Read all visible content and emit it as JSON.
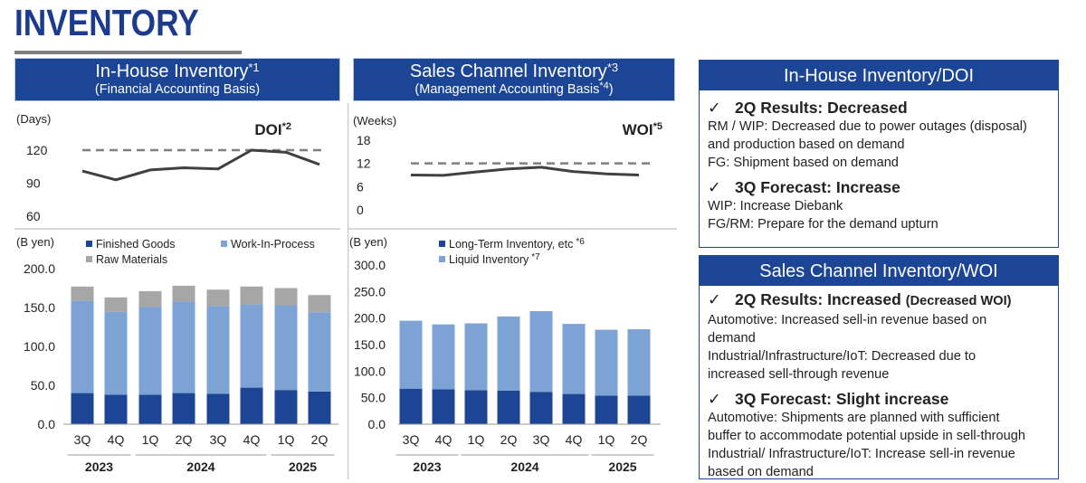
{
  "page_title": "INVENTORY",
  "panels": {
    "inhouse": {
      "title": "In-House Inventory",
      "title_sup": "*1",
      "subtitle": "(Financial Accounting Basis)"
    },
    "channel": {
      "title": "Sales Channel Inventory",
      "title_sup": "*3",
      "subtitle_a": "(Management Accounting Basis",
      "subtitle_sup": "*4",
      "subtitle_b": ")"
    }
  },
  "chart_data": [
    {
      "type": "line",
      "name": "DOI",
      "label": "DOI",
      "label_sup": "*2",
      "unit_label": "(Days)",
      "y_ticks": [
        60,
        90,
        120
      ],
      "ylim": [
        60,
        140
      ],
      "target_line": 120,
      "categories": [
        "3Q",
        "4Q",
        "1Q",
        "2Q",
        "3Q",
        "4Q",
        "1Q",
        "2Q"
      ],
      "values": [
        101,
        93,
        102,
        104,
        103,
        120,
        118,
        107
      ]
    },
    {
      "type": "bar",
      "stacked": true,
      "unit_label": "(B yen)",
      "y_ticks": [
        "0.0",
        "50.0",
        "100.0",
        "150.0",
        "200.0"
      ],
      "ylim": [
        0,
        200
      ],
      "categories": [
        "3Q",
        "4Q",
        "1Q",
        "2Q",
        "3Q",
        "4Q",
        "1Q",
        "2Q"
      ],
      "years": [
        {
          "label": "2023",
          "span": [
            0,
            1
          ]
        },
        {
          "label": "2024",
          "span": [
            2,
            5
          ]
        },
        {
          "label": "2025",
          "span": [
            6,
            7
          ]
        }
      ],
      "legend": [
        "Finished Goods",
        "Work-In-Process",
        "Raw Materials"
      ],
      "series": [
        {
          "name": "Finished Goods",
          "color": "#1c4596",
          "values": [
            40,
            38,
            38,
            40,
            39,
            47,
            44,
            42
          ]
        },
        {
          "name": "Work-In-Process",
          "color": "#7da2d4",
          "values": [
            119,
            107,
            113,
            118,
            113,
            107,
            109,
            102
          ]
        },
        {
          "name": "Raw Materials",
          "color": "#a6a6a6",
          "values": [
            18,
            18,
            20,
            20,
            21,
            23,
            22,
            22
          ]
        }
      ]
    },
    {
      "type": "line",
      "name": "WOI",
      "label": "WOI",
      "label_sup": "*5",
      "unit_label": "(Weeks)",
      "y_ticks": [
        0,
        6,
        12,
        18
      ],
      "ylim": [
        0,
        18
      ],
      "target_line": 12,
      "categories": [
        "3Q",
        "4Q",
        "1Q",
        "2Q",
        "3Q",
        "4Q",
        "1Q",
        "2Q"
      ],
      "values": [
        9.0,
        8.9,
        9.8,
        10.6,
        11.0,
        9.9,
        9.3,
        9.0
      ]
    },
    {
      "type": "bar",
      "stacked": true,
      "unit_label": "(B yen)",
      "y_ticks": [
        "0.0",
        "50.0",
        "100.0",
        "150.0",
        "200.0",
        "250.0",
        "300.0"
      ],
      "ylim": [
        0,
        300
      ],
      "categories": [
        "3Q",
        "4Q",
        "1Q",
        "2Q",
        "3Q",
        "4Q",
        "1Q",
        "2Q"
      ],
      "years": [
        {
          "label": "2023",
          "span": [
            0,
            1
          ]
        },
        {
          "label": "2024",
          "span": [
            2,
            5
          ]
        },
        {
          "label": "2025",
          "span": [
            6,
            7
          ]
        }
      ],
      "legend": [
        "Long-Term Inventory, etc",
        "Liquid Inventory"
      ],
      "legend_sups": [
        "*6",
        "*7"
      ],
      "series": [
        {
          "name": "Long-Term Inventory, etc",
          "color": "#1c4596",
          "values": [
            67,
            66,
            64,
            63,
            61,
            57,
            54,
            54
          ]
        },
        {
          "name": "Liquid Inventory",
          "color": "#7da2d4",
          "values": [
            128,
            122,
            126,
            140,
            152,
            132,
            124,
            125
          ]
        }
      ]
    }
  ],
  "summary": {
    "inhouse": {
      "header": "In-House Inventory/DOI",
      "check": "✓",
      "results_title": "2Q Results: Decreased",
      "results_lines": [
        "RM / WIP: Decreased due to power outages (disposal)",
        "and production based on demand",
        "FG: Shipment based on demand"
      ],
      "forecast_title": "3Q Forecast: Increase",
      "forecast_lines": [
        "WIP: Increase Diebank",
        "FG/RM: Prepare for the demand upturn"
      ]
    },
    "channel": {
      "header": "Sales Channel Inventory/WOI",
      "check": "✓",
      "results_title": "2Q Results: Increased",
      "results_sub": "(Decreased WOI)",
      "results_lines": [
        "Automotive: Increased sell-in revenue based on",
        "demand",
        "Industrial/Infrastructure/IoT: Decreased due to",
        "increased sell-through revenue"
      ],
      "forecast_title": "3Q Forecast: Slight increase",
      "forecast_lines": [
        "Automotive: Shipments are planned with sufficient",
        "buffer to accommodate potential upside in sell-through",
        "Industrial/ Infrastructure/IoT: Increase sell-in revenue",
        "based on demand"
      ]
    }
  }
}
